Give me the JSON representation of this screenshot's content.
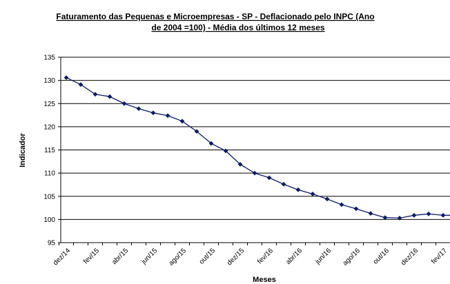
{
  "chart_data": {
    "type": "line",
    "title_lines": [
      "Faturamento das Pequenas e Microempresas - SP - Deflacionado pelo INPC (Ano",
      "de 2004 =100) - Média dos últimos 12 meses"
    ],
    "xlabel": "Meses",
    "ylabel": "Indicador",
    "ylim": [
      95,
      135
    ],
    "yticks": [
      95,
      100,
      105,
      110,
      115,
      120,
      125,
      130,
      135
    ],
    "grid": true,
    "x_tick_labels": [
      "dez/14",
      "fev/15",
      "abr/15",
      "jun/15",
      "ago/15",
      "out/15",
      "dez/15",
      "fev/16",
      "abr/16",
      "jun/16",
      "ago/16",
      "out/16",
      "dez/16",
      "fev/17"
    ],
    "categories": [
      "dez/14",
      "jan/15",
      "fev/15",
      "mar/15",
      "abr/15",
      "mai/15",
      "jun/15",
      "jul/15",
      "ago/15",
      "set/15",
      "out/15",
      "nov/15",
      "dez/15",
      "jan/16",
      "fev/16",
      "mar/16",
      "abr/16",
      "mai/16",
      "jun/16",
      "jul/16",
      "ago/16",
      "set/16",
      "out/16",
      "nov/16",
      "dez/16",
      "jan/17",
      "fev/17",
      "mar/17"
    ],
    "series": [
      {
        "values": [
          130.6,
          129.1,
          127.0,
          126.5,
          125.0,
          123.9,
          123.0,
          122.4,
          121.2,
          119.0,
          116.4,
          114.8,
          111.9,
          110.0,
          109.0,
          107.6,
          106.4,
          105.5,
          104.4,
          103.2,
          102.3,
          101.3,
          100.4,
          100.3,
          100.9,
          101.2,
          100.9,
          100.9
        ],
        "color": "#0b1a6e"
      }
    ]
  }
}
